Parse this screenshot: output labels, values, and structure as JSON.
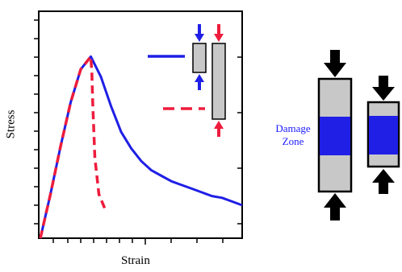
{
  "chart_data": {
    "type": "line",
    "xlabel": "Strain",
    "ylabel": "Stress",
    "grid": false,
    "series": [
      {
        "color": "#1f1fe6",
        "style": "solid",
        "x": [
          0,
          0.05,
          0.1,
          0.15,
          0.2,
          0.25,
          0.3,
          0.35,
          0.4,
          0.45,
          0.5,
          0.55,
          0.6,
          0.65,
          0.7,
          0.75,
          0.8,
          0.85,
          0.9,
          0.95,
          1.0
        ],
        "y": [
          0,
          0.24,
          0.5,
          0.74,
          0.92,
          0.99,
          0.88,
          0.72,
          0.58,
          0.49,
          0.42,
          0.37,
          0.34,
          0.31,
          0.29,
          0.27,
          0.25,
          0.23,
          0.22,
          0.2,
          0.18
        ]
      },
      {
        "color": "#ee1c3c",
        "style": "dashed",
        "x": [
          0,
          0.05,
          0.1,
          0.15,
          0.2,
          0.25,
          0.255,
          0.26,
          0.27,
          0.29,
          0.32
        ],
        "y": [
          0,
          0.24,
          0.5,
          0.74,
          0.92,
          0.99,
          0.9,
          0.72,
          0.44,
          0.24,
          0.16
        ]
      }
    ]
  },
  "diagram": {
    "damage_zone_label_line1": "Damage",
    "damage_zone_label_line2": "Zone",
    "colors": {
      "specimen": "#c8c8c8",
      "damage": "#1f1fe6",
      "arrow": "#000000",
      "blue": "#1f1fe6",
      "red": "#ee1c3c"
    },
    "icons": [
      "compression-arrow-icon"
    ]
  }
}
